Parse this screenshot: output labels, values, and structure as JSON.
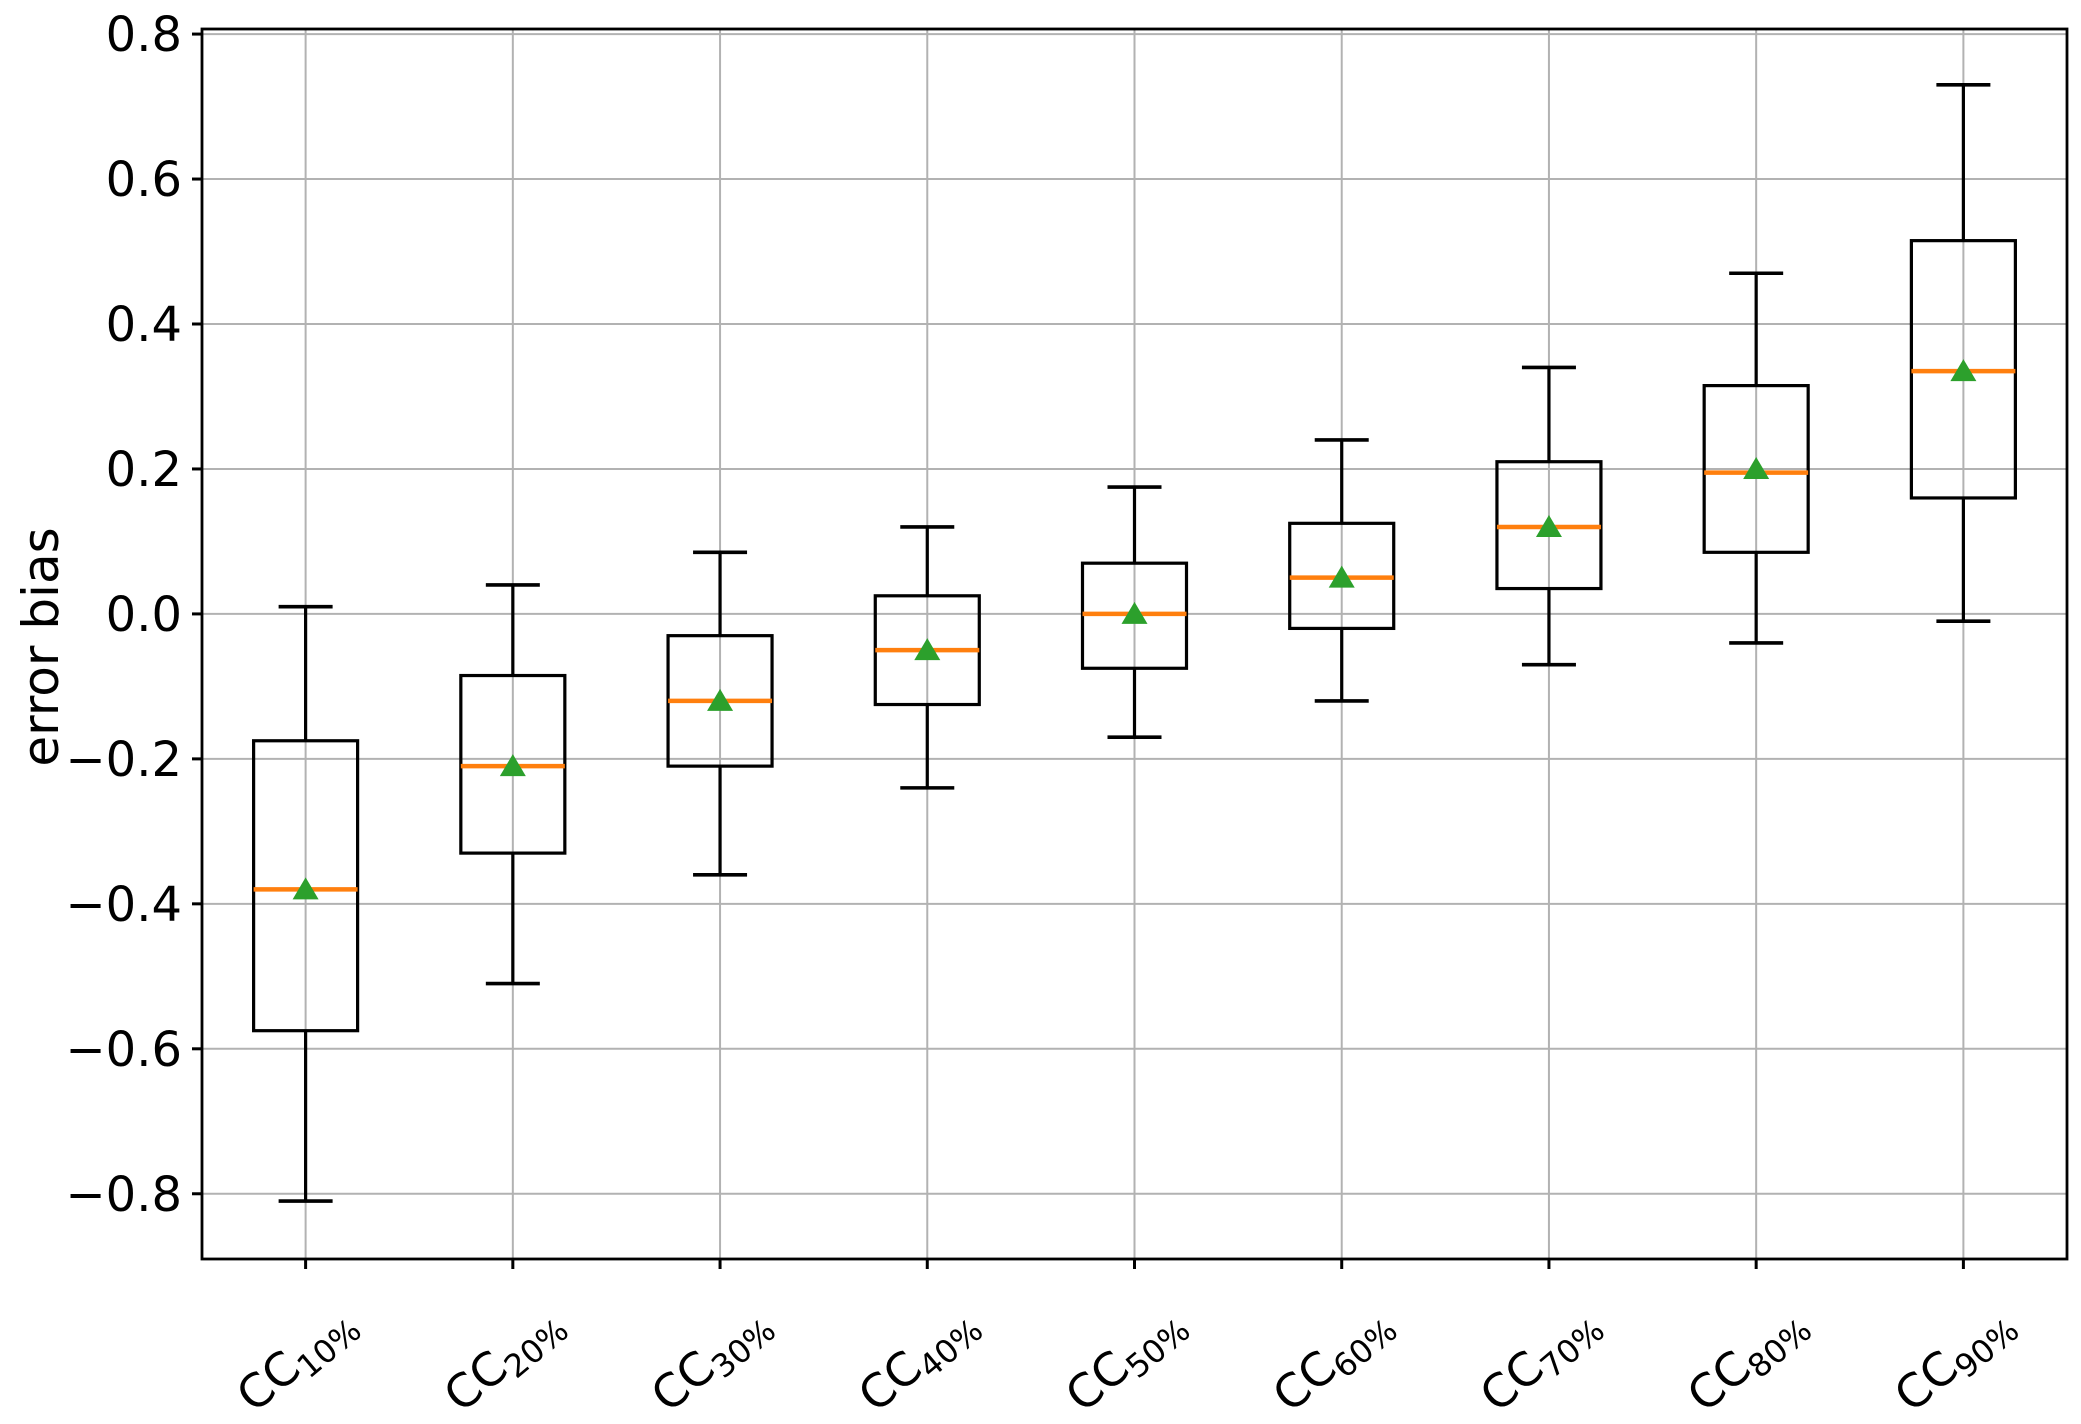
{
  "chart_data": {
    "type": "boxplot",
    "title": "",
    "xlabel": "",
    "ylabel": "error bias",
    "ylim": [
      -0.89,
      0.807
    ],
    "grid": true,
    "yticks": [
      0.8,
      0.6,
      0.4,
      0.2,
      0.0,
      -0.2,
      -0.4,
      -0.6,
      -0.8
    ],
    "ytick_labels": [
      "0.8",
      "0.6",
      "0.4",
      "0.2",
      "0.0",
      "−0.2",
      "−0.4",
      "−0.6",
      "−0.8"
    ],
    "categories": [
      {
        "prefix": "CC",
        "subscript": "10%"
      },
      {
        "prefix": "CC",
        "subscript": "20%"
      },
      {
        "prefix": "CC",
        "subscript": "30%"
      },
      {
        "prefix": "CC",
        "subscript": "40%"
      },
      {
        "prefix": "CC",
        "subscript": "50%"
      },
      {
        "prefix": "CC",
        "subscript": "60%"
      },
      {
        "prefix": "CC",
        "subscript": "70%"
      },
      {
        "prefix": "CC",
        "subscript": "80%"
      },
      {
        "prefix": "CC",
        "subscript": "90%"
      }
    ],
    "boxes": [
      {
        "label": "CC10%",
        "whisker_low": -0.81,
        "q1": -0.575,
        "median": -0.38,
        "q3": -0.175,
        "whisker_high": 0.01,
        "mean": -0.38
      },
      {
        "label": "CC20%",
        "whisker_low": -0.51,
        "q1": -0.33,
        "median": -0.21,
        "q3": -0.085,
        "whisker_high": 0.04,
        "mean": -0.21
      },
      {
        "label": "CC30%",
        "whisker_low": -0.36,
        "q1": -0.21,
        "median": -0.12,
        "q3": -0.03,
        "whisker_high": 0.085,
        "mean": -0.12
      },
      {
        "label": "CC40%",
        "whisker_low": -0.24,
        "q1": -0.125,
        "median": -0.05,
        "q3": 0.025,
        "whisker_high": 0.12,
        "mean": -0.05
      },
      {
        "label": "CC50%",
        "whisker_low": -0.17,
        "q1": -0.075,
        "median": 0.0,
        "q3": 0.07,
        "whisker_high": 0.175,
        "mean": 0.0
      },
      {
        "label": "CC60%",
        "whisker_low": -0.12,
        "q1": -0.02,
        "median": 0.05,
        "q3": 0.125,
        "whisker_high": 0.24,
        "mean": 0.05
      },
      {
        "label": "CC70%",
        "whisker_low": -0.07,
        "q1": 0.035,
        "median": 0.12,
        "q3": 0.21,
        "whisker_high": 0.34,
        "mean": 0.12
      },
      {
        "label": "CC80%",
        "whisker_low": -0.04,
        "q1": 0.085,
        "median": 0.195,
        "q3": 0.315,
        "whisker_high": 0.47,
        "mean": 0.2
      },
      {
        "label": "CC90%",
        "whisker_low": -0.01,
        "q1": 0.16,
        "median": 0.335,
        "q3": 0.515,
        "whisker_high": 0.73,
        "mean": 0.335
      }
    ],
    "colors": {
      "box": "#000000",
      "whisker": "#000000",
      "cap": "#000000",
      "median": "#ff7f0e",
      "mean_marker": "#2ca02c",
      "grid": "#b2b2b2",
      "frame": "#000000",
      "background": "#ffffff"
    },
    "legend_position": "none"
  }
}
